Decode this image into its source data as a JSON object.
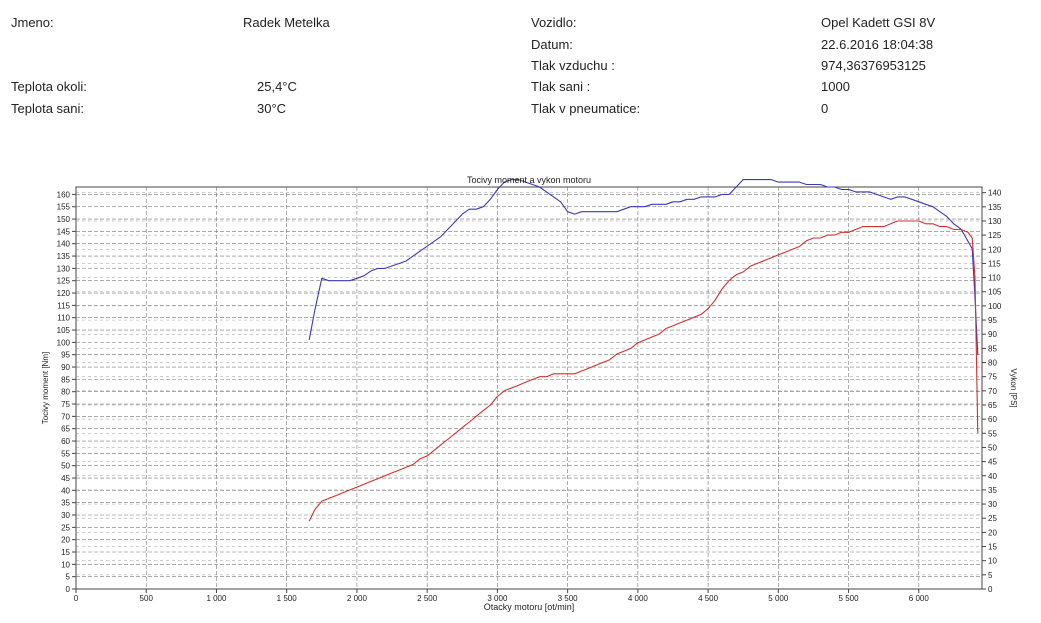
{
  "info": {
    "left": [
      {
        "label": "Jmeno:",
        "value": "Radek Metelka"
      },
      {
        "label": "Teplota okoli:",
        "value": "25,4°C"
      },
      {
        "label": "Teplota sani:",
        "value": "30°C"
      }
    ],
    "right": [
      {
        "label": "Vozidlo:",
        "value": "Opel Kadett GSI 8V"
      },
      {
        "label": "Datum:",
        "value": "22.6.2016 18:04:38"
      },
      {
        "label": "Tlak vzduchu :",
        "value": "974,36376953125"
      },
      {
        "label": "Tlak sani :",
        "value": "1000"
      },
      {
        "label": "Tlak v pneumatice:",
        "value": "0"
      }
    ]
  },
  "chart_data": {
    "type": "line",
    "title": "Tocivy moment a vykon motoru",
    "xlabel": "Otacky motoru [ot/min]",
    "ylabel": "Tocivy moment [Nm]",
    "y2label": "Vykon [PS]",
    "xlim": [
      0,
      6450
    ],
    "ylim": [
      0,
      163
    ],
    "y2lim": [
      0,
      142
    ],
    "x_ticks": [
      0,
      500,
      1000,
      1500,
      2000,
      2500,
      3000,
      3500,
      4000,
      4500,
      5000,
      5500,
      6000
    ],
    "x_tick_labels": [
      "0",
      "500",
      "1 000",
      "1 500",
      "2 000",
      "2 500",
      "3 000",
      "3 500",
      "4 000",
      "4 500",
      "5 000",
      "5 500",
      "6 000"
    ],
    "y_ticks": [
      0,
      5,
      10,
      15,
      20,
      25,
      30,
      35,
      40,
      45,
      50,
      55,
      60,
      65,
      70,
      75,
      80,
      85,
      90,
      95,
      100,
      105,
      110,
      115,
      120,
      125,
      130,
      135,
      140,
      145,
      150,
      155,
      160
    ],
    "y2_ticks": [
      0,
      5,
      10,
      15,
      20,
      25,
      30,
      35,
      40,
      45,
      50,
      55,
      60,
      65,
      70,
      75,
      80,
      85,
      90,
      95,
      100,
      105,
      110,
      115,
      120,
      125,
      130,
      135,
      140
    ],
    "grid": true,
    "series": [
      {
        "axis": "left",
        "color": "#3a3ab8",
        "x": [
          1660,
          1700,
          1750,
          1800,
          1850,
          1900,
          1950,
          2000,
          2050,
          2100,
          2150,
          2200,
          2250,
          2300,
          2350,
          2400,
          2450,
          2500,
          2550,
          2600,
          2650,
          2700,
          2750,
          2800,
          2850,
          2900,
          2950,
          3000,
          3050,
          3100,
          3150,
          3200,
          3250,
          3300,
          3350,
          3400,
          3450,
          3500,
          3550,
          3600,
          3650,
          3700,
          3750,
          3800,
          3850,
          3900,
          3950,
          4000,
          4050,
          4100,
          4150,
          4200,
          4250,
          4300,
          4350,
          4400,
          4450,
          4500,
          4550,
          4600,
          4650,
          4700,
          4750,
          4800,
          4850,
          4900,
          4950,
          5000,
          5050,
          5100,
          5150,
          5200,
          5250,
          5300,
          5350,
          5400,
          5450,
          5500,
          5550,
          5600,
          5650,
          5700,
          5750,
          5800,
          5850,
          5900,
          5950,
          6000,
          6050,
          6100,
          6150,
          6200,
          6250,
          6300,
          6350,
          6380,
          6400,
          6420
        ],
        "y": [
          101,
          113,
          126,
          125,
          125,
          125,
          125,
          126,
          127,
          129,
          130,
          130,
          131,
          132,
          133,
          135,
          137,
          139,
          141,
          143,
          146,
          149,
          152,
          154,
          154,
          155,
          158,
          162,
          165,
          166,
          166,
          165,
          164,
          163,
          161,
          159,
          157,
          153,
          152,
          153,
          153,
          153,
          153,
          153,
          153,
          154,
          155,
          155,
          155,
          156,
          156,
          156,
          157,
          157,
          158,
          158,
          159,
          159,
          159,
          160,
          160,
          163,
          166,
          166,
          166,
          166,
          166,
          165,
          165,
          165,
          165,
          164,
          164,
          164,
          163,
          163,
          162,
          162,
          161,
          161,
          161,
          160,
          159,
          158,
          159,
          159,
          158,
          157,
          156,
          155,
          153,
          151,
          148,
          146,
          141,
          138,
          118,
          95
        ]
      },
      {
        "axis": "right",
        "color": "#d03030",
        "x": [
          1660,
          1700,
          1750,
          1800,
          1850,
          1900,
          1950,
          2000,
          2050,
          2100,
          2150,
          2200,
          2250,
          2300,
          2350,
          2400,
          2450,
          2500,
          2550,
          2600,
          2650,
          2700,
          2750,
          2800,
          2850,
          2900,
          2950,
          3000,
          3050,
          3100,
          3150,
          3200,
          3250,
          3300,
          3350,
          3400,
          3450,
          3500,
          3550,
          3600,
          3650,
          3700,
          3750,
          3800,
          3850,
          3900,
          3950,
          4000,
          4050,
          4100,
          4150,
          4200,
          4250,
          4300,
          4350,
          4400,
          4450,
          4500,
          4550,
          4600,
          4650,
          4700,
          4750,
          4800,
          4850,
          4900,
          4950,
          5000,
          5050,
          5100,
          5150,
          5200,
          5250,
          5300,
          5350,
          5400,
          5450,
          5500,
          5550,
          5600,
          5650,
          5700,
          5750,
          5800,
          5850,
          5900,
          5950,
          6000,
          6050,
          6100,
          6150,
          6200,
          6250,
          6300,
          6350,
          6380,
          6400,
          6420
        ],
        "y": [
          24,
          28,
          31,
          32,
          33,
          34,
          35,
          36,
          37,
          38,
          39,
          40,
          41,
          42,
          43,
          44,
          46,
          47,
          49,
          51,
          53,
          55,
          57,
          59,
          61,
          63,
          65,
          68,
          70,
          71,
          72,
          73,
          74,
          75,
          75,
          76,
          76,
          76,
          76,
          77,
          78,
          79,
          80,
          81,
          83,
          84,
          85,
          87,
          88,
          89,
          90,
          92,
          93,
          94,
          95,
          96,
          97,
          99,
          102,
          106,
          109,
          111,
          112,
          114,
          115,
          116,
          117,
          118,
          119,
          120,
          121,
          123,
          124,
          124,
          125,
          125,
          126,
          126,
          127,
          128,
          128,
          128,
          128,
          129,
          130,
          130,
          130,
          130,
          129,
          129,
          128,
          128,
          127,
          127,
          126,
          124,
          110,
          55
        ]
      }
    ]
  }
}
